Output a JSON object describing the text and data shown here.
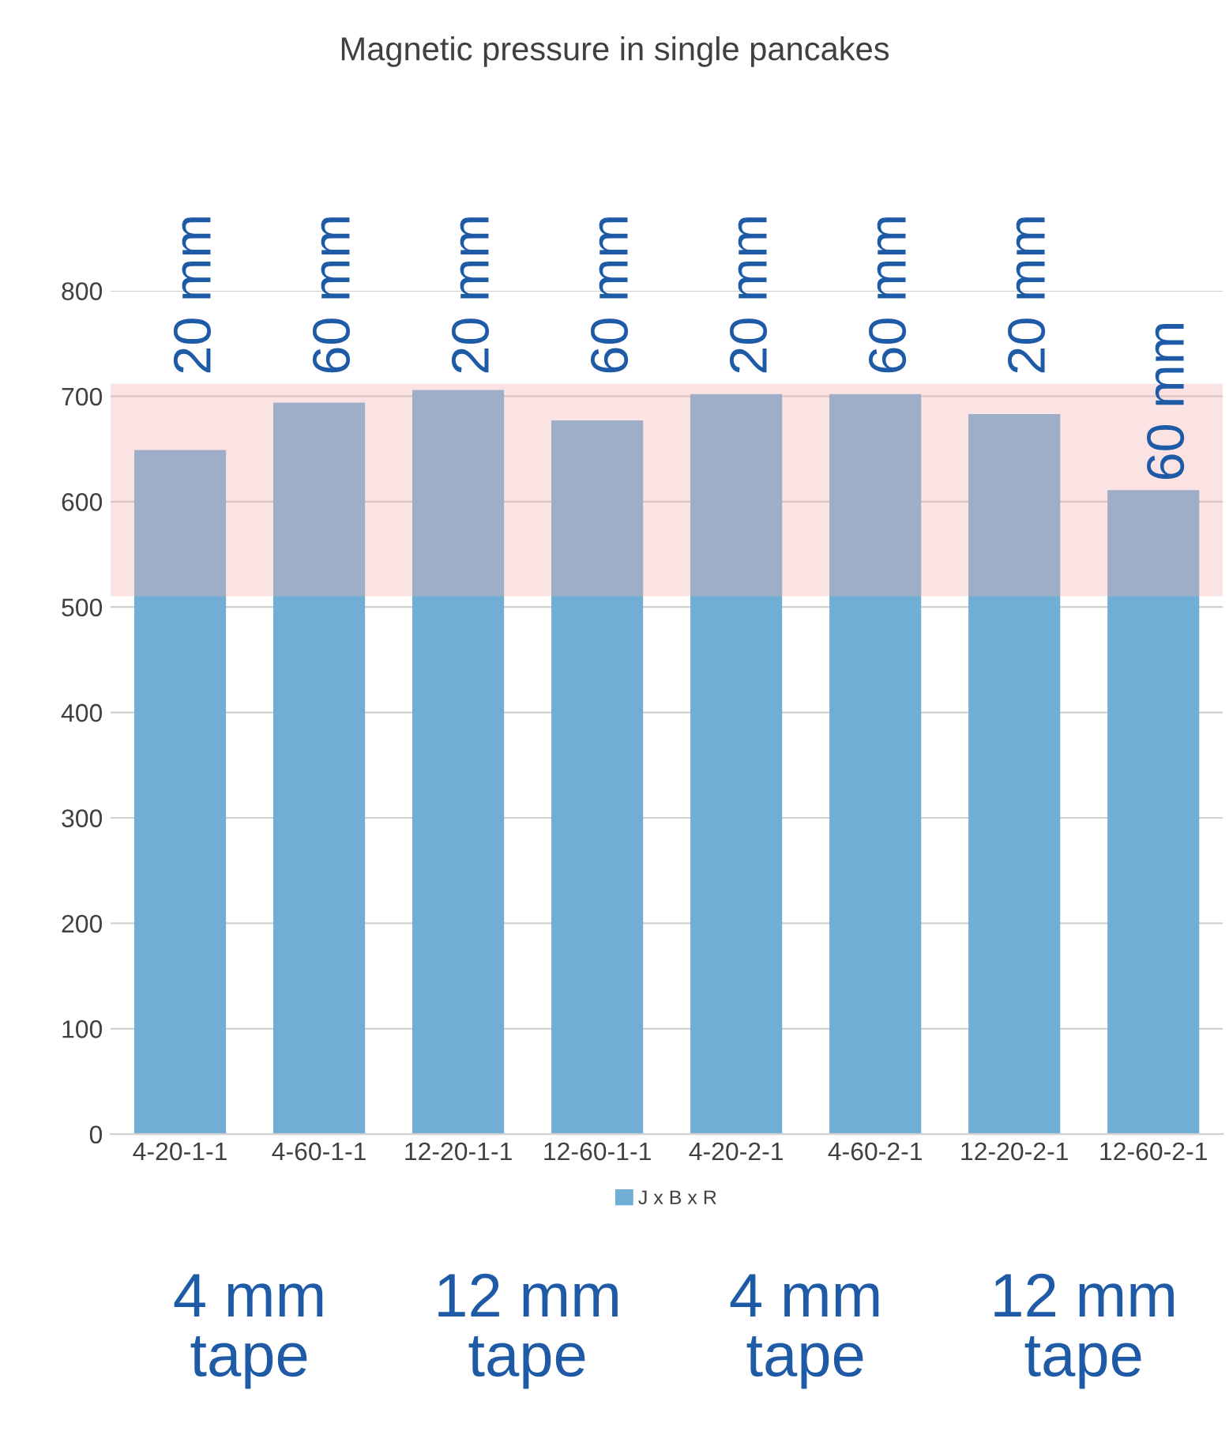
{
  "chart_data": {
    "type": "bar",
    "title": "Magnetic pressure in single pancakes",
    "categories": [
      "4-20-1-1",
      "4-60-1-1",
      "12-20-1-1",
      "12-60-1-1",
      "4-20-2-1",
      "4-60-2-1",
      "12-20-2-1",
      "12-60-2-1"
    ],
    "series": [
      {
        "name": "J x B x R",
        "color": "#70aed6",
        "values": [
          649,
          694,
          706,
          677,
          702,
          702,
          683,
          611
        ]
      }
    ],
    "ylim": [
      0,
      800
    ],
    "yticks": [
      0,
      100,
      200,
      300,
      400,
      500,
      600,
      700,
      800
    ],
    "grid": "y",
    "legend": "bottom",
    "bands": [
      {
        "axis": "y",
        "from": 510,
        "to": 712,
        "label": null,
        "color": "#f4b0b0"
      }
    ],
    "annotations": [
      "20 mm",
      "60 mm",
      "20 mm",
      "60 mm",
      "20 mm",
      "60 mm",
      "20 mm",
      "60 mm",
      "4 mm\ntape",
      "12 mm\ntape",
      "4 mm\ntape",
      "12 mm\ntape"
    ]
  }
}
